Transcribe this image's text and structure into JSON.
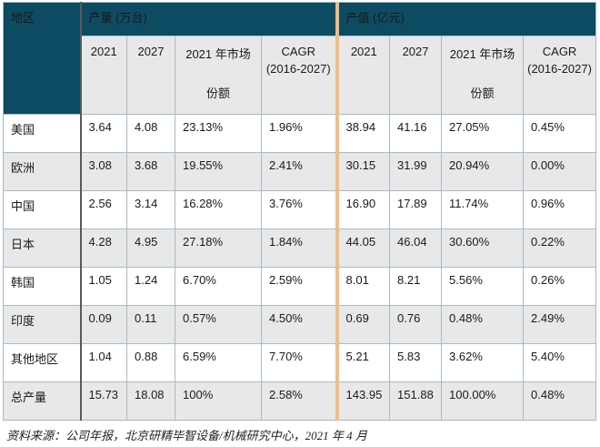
{
  "chart_data": {
    "type": "table",
    "title": "",
    "corner": "地区",
    "groups": [
      {
        "label": "产量 (万台)",
        "columns": [
          "2021",
          "2027",
          "2021 年市场份额",
          "CAGR (2016-2027)"
        ]
      },
      {
        "label": "产值 (亿元)",
        "columns": [
          "2021",
          "2027",
          "2021 年市场份额",
          "CAGR (2016-2027)"
        ]
      }
    ],
    "rows": [
      {
        "region": "美国",
        "values": [
          "3.64",
          "4.08",
          "23.13%",
          "1.96%",
          "38.94",
          "41.16",
          "27.05%",
          "0.45%"
        ]
      },
      {
        "region": "欧洲",
        "values": [
          "3.08",
          "3.68",
          "19.55%",
          "2.41%",
          "30.15",
          "31.99",
          "20.94%",
          "0.00%"
        ]
      },
      {
        "region": "中国",
        "values": [
          "2.56",
          "3.14",
          "16.28%",
          "3.76%",
          "16.90",
          "17.89",
          "11.74%",
          "0.96%"
        ]
      },
      {
        "region": "日本",
        "values": [
          "4.28",
          "4.95",
          "27.18%",
          "1.84%",
          "44.05",
          "46.04",
          "30.60%",
          "0.22%"
        ]
      },
      {
        "region": "韩国",
        "values": [
          "1.05",
          "1.24",
          "6.70%",
          "2.59%",
          "8.01",
          "8.21",
          "5.56%",
          "0.26%"
        ]
      },
      {
        "region": "印度",
        "values": [
          "0.09",
          "0.11",
          "0.57%",
          "4.50%",
          "0.69",
          "0.76",
          "0.48%",
          "2.49%"
        ]
      },
      {
        "region": "其他地区",
        "values": [
          "1.04",
          "0.88",
          "6.59%",
          "7.70%",
          "5.21",
          "5.83",
          "3.62%",
          "5.40%"
        ]
      },
      {
        "region": "总产量",
        "values": [
          "15.73",
          "18.08",
          "100%",
          "2.58%",
          "143.95",
          "151.88",
          "100.00%",
          "0.48%"
        ]
      }
    ],
    "source_note": "资料来源：公司年报，北京研精毕智设备/机械研究中心，2021 年 4 月"
  },
  "header_display": {
    "year1": "2021",
    "year2": "2027",
    "share_line1": "2021 年市场",
    "share_line2": "份额",
    "cagr_line1": "CAGR",
    "cagr_line2": "(2016-2027)"
  },
  "colors": {
    "header_bg": "#0D4B62",
    "header_text": "#FFFFFF",
    "stripe_bg": "#E8E8E8",
    "grid_border": "#A4BBC9",
    "dark_divider": "#595959",
    "accent_divider": "#F0BE85"
  }
}
